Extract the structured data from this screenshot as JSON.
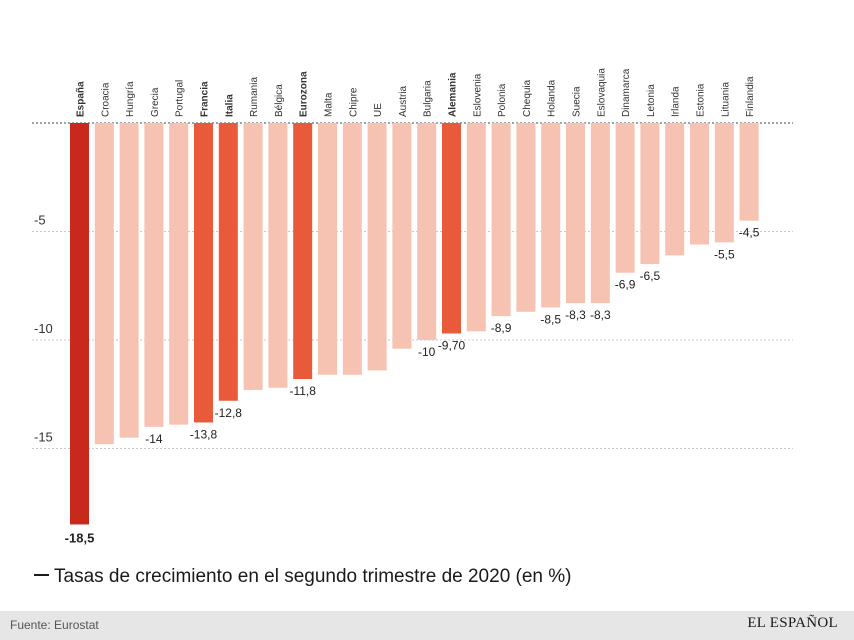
{
  "chart_data": {
    "type": "bar",
    "categories": [
      "España",
      "Croacia",
      "Hungría",
      "Grecia",
      "Portugal",
      "Francia",
      "Italia",
      "Rumania",
      "Bélgica",
      "Eurozona",
      "Malta",
      "Chipre",
      "UE",
      "Austria",
      "Bulgaria",
      "Alemania",
      "Eslovenia",
      "Polonia",
      "Chequia",
      "Holanda",
      "Suecia",
      "Eslovaquia",
      "Dinamarca",
      "Letonia",
      "Irlanda",
      "Estonia",
      "Lituania",
      "Finlandia"
    ],
    "values": [
      -18.5,
      -14.8,
      -14.5,
      -14,
      -13.9,
      -13.8,
      -12.8,
      -12.3,
      -12.2,
      -11.8,
      -11.6,
      -11.6,
      -11.4,
      -10.4,
      -10,
      -9.7,
      -9.6,
      -8.9,
      -8.7,
      -8.5,
      -8.3,
      -8.3,
      -6.9,
      -6.5,
      -6.1,
      -5.6,
      -5.5,
      -4.5
    ],
    "data_labels": [
      "-18,5",
      "",
      "",
      "-14",
      "",
      "-13,8",
      "-12,8",
      "",
      "",
      "-11,8",
      "",
      "",
      "",
      "",
      "-10",
      "-9,70",
      "",
      "-8,9",
      "",
      "-8,5",
      "-8,3",
      "-8,3",
      "-6,9",
      "-6,5",
      "",
      "",
      "-5,5",
      "-4,5"
    ],
    "bold_categories": [
      "España",
      "Francia",
      "Italia",
      "Eurozona",
      "Alemania"
    ],
    "colors": {
      "España": "#c8291c",
      "Francia": "#e85a3a",
      "Italia": "#e85a3a",
      "Eurozona": "#e85a3a",
      "Alemania": "#e85a3a",
      "default": "#f6c2b1"
    },
    "yticks": [
      -5,
      -10,
      -15
    ],
    "ylim": [
      -18.5,
      0
    ],
    "grid": true,
    "zero_line": "dotted"
  },
  "legend_text": "Tasas de crecimiento en el segundo trimestre de 2020 (en %)",
  "footer": {
    "source": "Fuente: Eurostat",
    "brand": "EL ESPAÑOL"
  }
}
